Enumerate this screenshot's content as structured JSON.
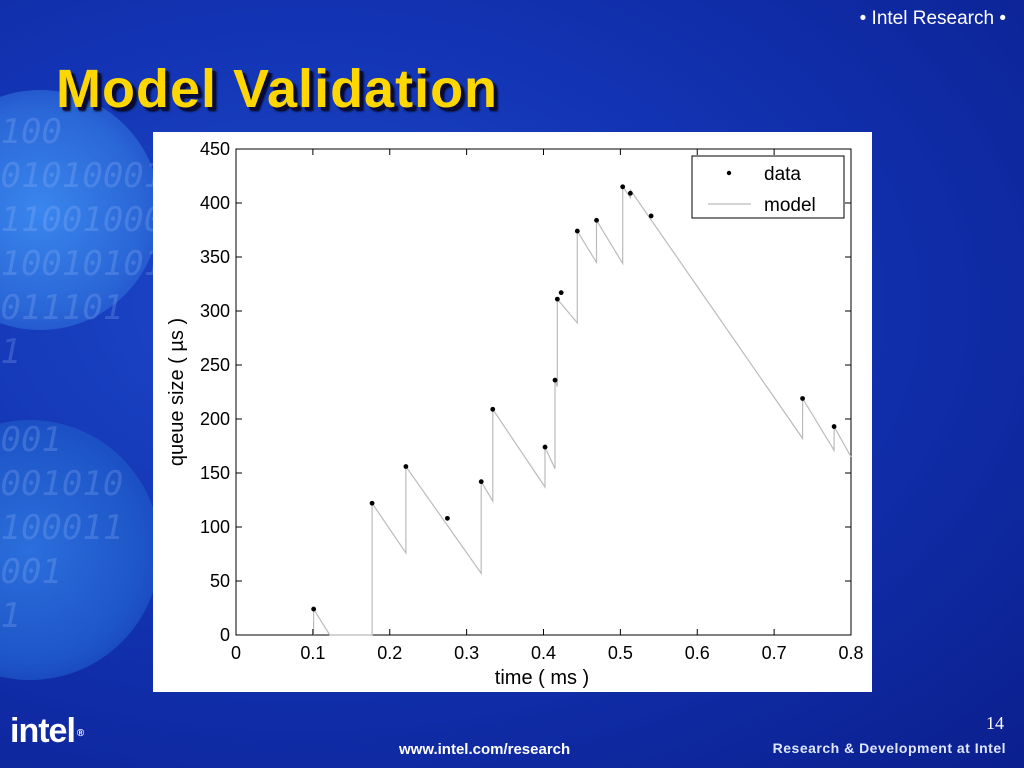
{
  "header": {
    "brand": "• Intel Research •"
  },
  "title": "Model Validation",
  "logo": {
    "text": "intel",
    "mark": "®"
  },
  "footer": {
    "url": "www.intel.com/research",
    "tagline": "Research & Development at Intel",
    "page_number": "14"
  },
  "colors": {
    "title": "#ffd700",
    "background": "#1233b3",
    "model_line": "#bbbbbb",
    "data_point": "#000000"
  },
  "chart_data": {
    "type": "scatter",
    "title": "",
    "xlabel": "time ( ms )",
    "ylabel": "queue size ( µs )",
    "xlim": [
      0,
      0.8
    ],
    "ylim": [
      0,
      450
    ],
    "xticks": [
      0,
      0.1,
      0.2,
      0.3,
      0.4,
      0.5,
      0.6,
      0.7,
      0.8
    ],
    "xtick_labels": [
      "0",
      "0.1",
      "0.2",
      "0.3",
      "0.4",
      "0.5",
      "0.6",
      "0.7",
      "0.8"
    ],
    "yticks": [
      0,
      50,
      100,
      150,
      200,
      250,
      300,
      350,
      400,
      450
    ],
    "ytick_labels": [
      "0",
      "50",
      "100",
      "150",
      "200",
      "250",
      "300",
      "350",
      "400",
      "450"
    ],
    "legend": {
      "placement": "top-right",
      "entries": [
        "data",
        "model"
      ]
    },
    "series": [
      {
        "name": "data",
        "kind": "points",
        "x": [
          0.101,
          0.177,
          0.221,
          0.275,
          0.319,
          0.334,
          0.402,
          0.415,
          0.418,
          0.423,
          0.444,
          0.469,
          0.503,
          0.513,
          0.54,
          0.737,
          0.778
        ],
        "y": [
          24,
          122,
          156,
          108,
          142,
          209,
          174,
          236,
          311,
          317,
          374,
          384,
          415,
          409,
          388,
          219,
          193
        ]
      },
      {
        "name": "model",
        "kind": "line",
        "x": [
          0.101,
          0.101,
          0.122,
          0.177,
          0.177,
          0.221,
          0.221,
          0.319,
          0.319,
          0.334,
          0.334,
          0.402,
          0.402,
          0.415,
          0.415,
          0.418,
          0.418,
          0.444,
          0.444,
          0.469,
          0.469,
          0.503,
          0.503,
          0.513,
          0.513,
          0.737,
          0.737,
          0.778,
          0.778,
          0.8
        ],
        "y": [
          0,
          24,
          0,
          0,
          122,
          76,
          156,
          57,
          142,
          124,
          209,
          137,
          174,
          154,
          236,
          230,
          311,
          289,
          374,
          345,
          384,
          344,
          415,
          405,
          412,
          182,
          219,
          171,
          193,
          165
        ]
      }
    ]
  }
}
